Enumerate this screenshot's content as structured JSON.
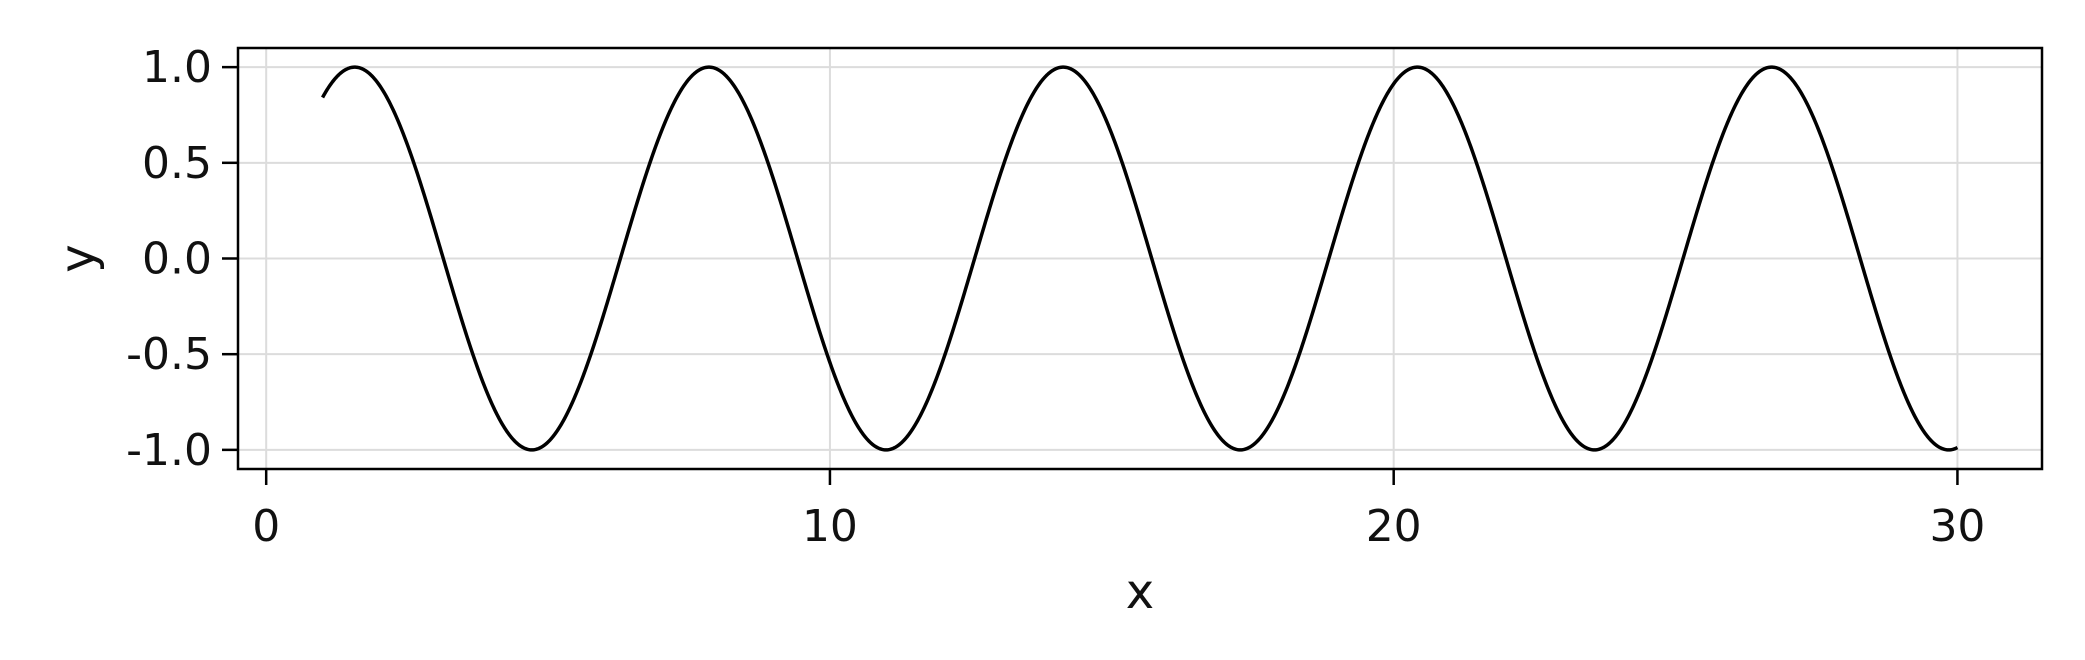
{
  "chart_data": {
    "type": "line",
    "xlabel": "x",
    "ylabel": "y",
    "xlim": [
      -0.5,
      31.5
    ],
    "ylim": [
      -1.1,
      1.1
    ],
    "xticks": [
      0,
      10,
      20,
      30
    ],
    "xtick_labels": [
      "0",
      "10",
      "20",
      "30"
    ],
    "yticks": [
      -1.0,
      -0.5,
      0.0,
      0.5,
      1.0
    ],
    "ytick_labels": [
      "-1.0",
      "-0.5",
      "0.0",
      "0.5",
      "1.0"
    ],
    "grid": true,
    "series": [
      {
        "function": "sin(x)",
        "x_range": [
          1,
          30
        ],
        "color": "#000000"
      }
    ]
  }
}
